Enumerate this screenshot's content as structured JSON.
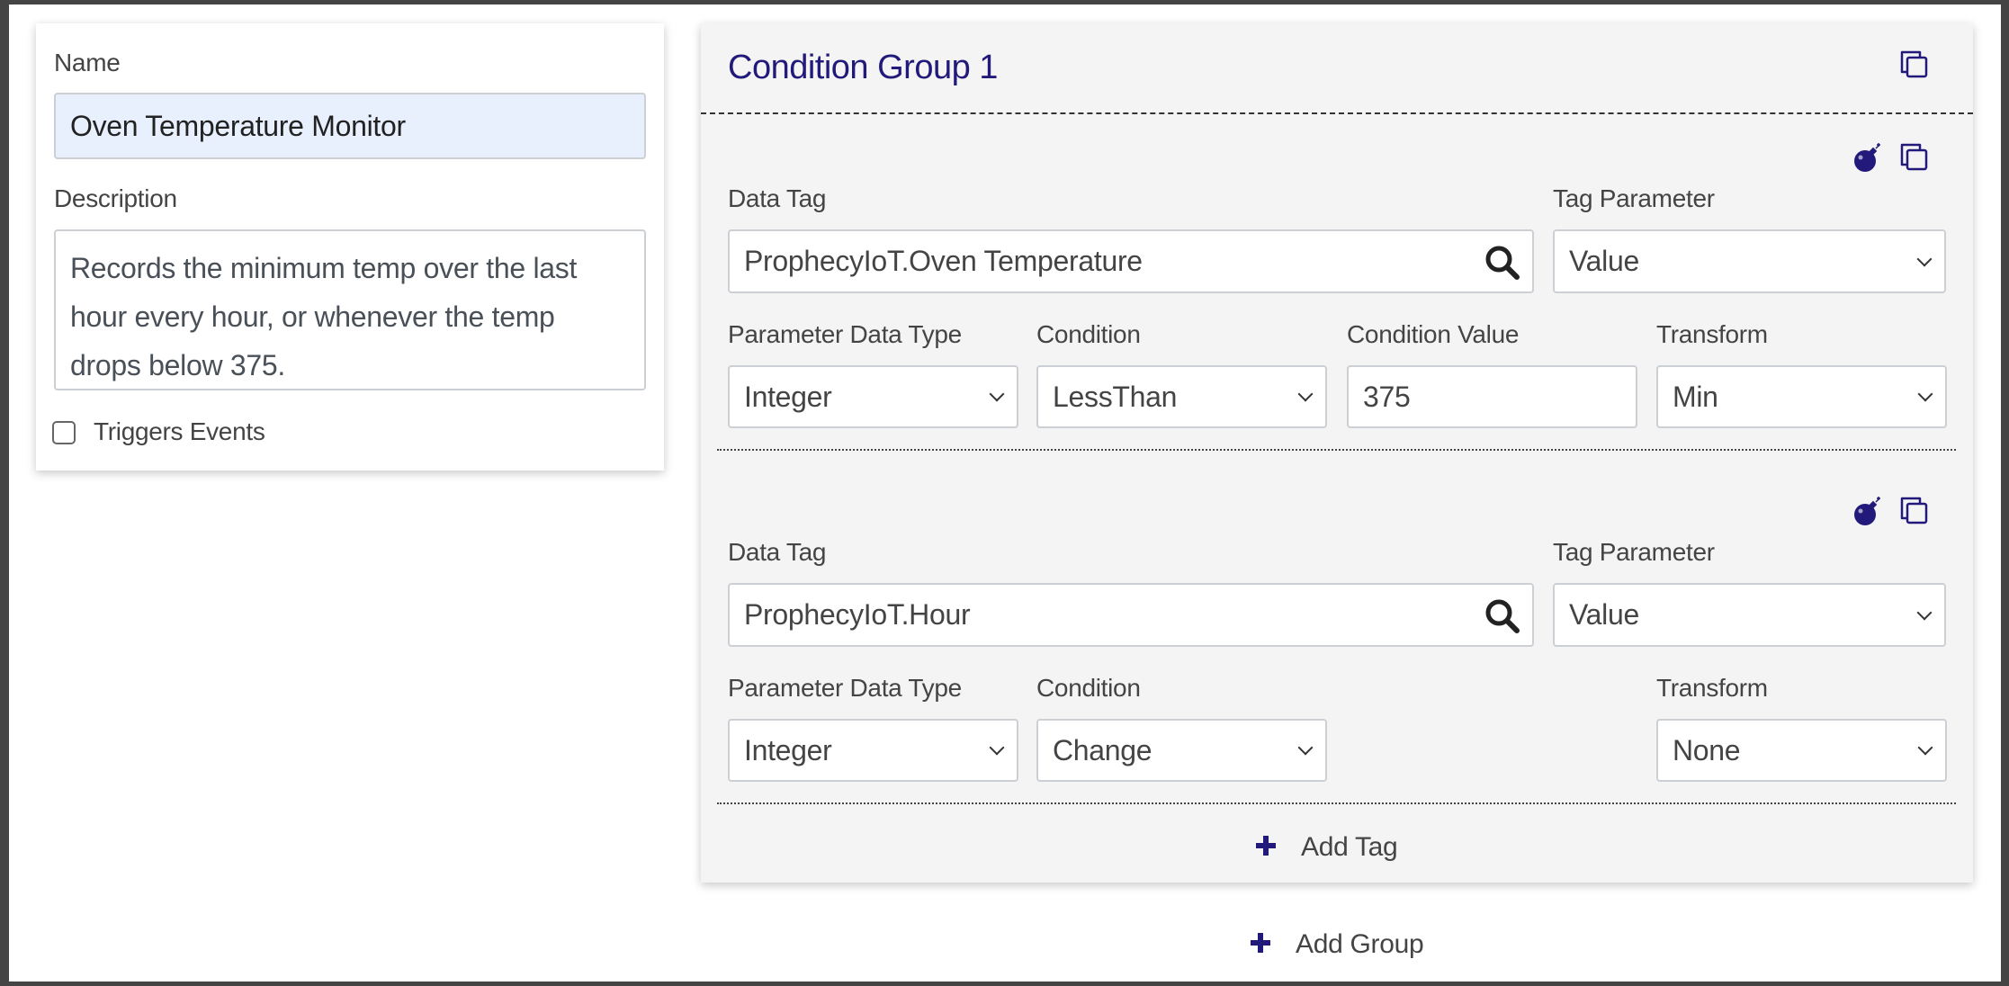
{
  "details": {
    "name_label": "Name",
    "name_value": "Oven Temperature Monitor",
    "description_label": "Description",
    "description_value": "Records the minimum temp over the last hour every hour, or whenever the temp drops below 375.",
    "triggers_label": "Triggers Events",
    "triggers_checked": false
  },
  "group": {
    "title": "Condition Group 1",
    "tags": [
      {
        "data_tag_label": "Data Tag",
        "data_tag_value": "ProphecyIoT.Oven Temperature",
        "tag_param_label": "Tag Parameter",
        "tag_param_value": "Value",
        "pdt_label": "Parameter Data Type",
        "pdt_value": "Integer",
        "cond_label": "Condition",
        "cond_value": "LessThan",
        "cond_value_label": "Condition Value",
        "cond_value_value": "375",
        "transform_label": "Transform",
        "transform_value": "Min"
      },
      {
        "data_tag_label": "Data Tag",
        "data_tag_value": "ProphecyIoT.Hour",
        "tag_param_label": "Tag Parameter",
        "tag_param_value": "Value",
        "pdt_label": "Parameter Data Type",
        "pdt_value": "Integer",
        "cond_label": "Condition",
        "cond_value": "Change",
        "transform_label": "Transform",
        "transform_value": "None"
      }
    ],
    "add_tag_label": "Add Tag"
  },
  "add_group_label": "Add Group",
  "colors": {
    "accent": "#221a7a",
    "panel_bg": "#f4f4f4",
    "name_input_bg": "#e8f0fe"
  },
  "icons": [
    "copy-icon",
    "bomb-icon",
    "search-icon",
    "plus-icon",
    "chevron-down-icon"
  ]
}
